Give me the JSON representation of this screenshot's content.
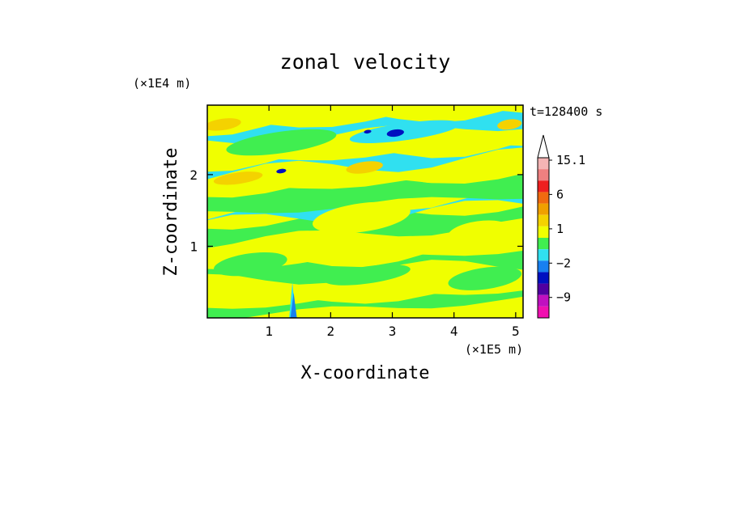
{
  "chart_data": {
    "type": "heatmap",
    "title": "zonal velocity",
    "xlabel": "X-coordinate",
    "ylabel": "Z-coordinate",
    "x_unit": "(×1E5 m)",
    "y_unit": "(×1E4 m)",
    "time_label": "t=128400 s",
    "xlim": [
      0,
      5.12
    ],
    "ylim": [
      0,
      2.97
    ],
    "x_ticks": [
      1,
      2,
      3,
      4,
      5
    ],
    "y_ticks": [
      1,
      2
    ],
    "colorbar": {
      "labels": [
        "15.1",
        "6",
        "1",
        "−2",
        "−9"
      ],
      "label_values": [
        15.1,
        6,
        1,
        -2,
        -9
      ],
      "levels": [
        {
          "value": 15.1,
          "color": "#f4b4b4"
        },
        {
          "value": 12,
          "color": "#ee8080"
        },
        {
          "value": 9,
          "color": "#ee2020"
        },
        {
          "value": 6,
          "color": "#f06a10"
        },
        {
          "value": 4,
          "color": "#f0a000"
        },
        {
          "value": 2,
          "color": "#f4d200"
        },
        {
          "value": 1,
          "color": "#f0ff00"
        },
        {
          "value": 0,
          "color": "#40ee50"
        },
        {
          "value": -1,
          "color": "#30e0f0"
        },
        {
          "value": -2,
          "color": "#1880f0"
        },
        {
          "value": -4,
          "color": "#0010c0"
        },
        {
          "value": -6,
          "color": "#5000a0"
        },
        {
          "value": -9,
          "color": "#c010c0"
        },
        {
          "value": -12,
          "color": "#f010b0"
        }
      ]
    },
    "bands": [
      {
        "z": [
          0.0,
          0.15
        ],
        "value": 0
      },
      {
        "z": [
          0.15,
          0.5
        ],
        "value": 1
      },
      {
        "z": [
          0.5,
          0.7
        ],
        "value": 0
      },
      {
        "z": [
          0.7,
          1.05
        ],
        "value": 1
      },
      {
        "z": [
          1.05,
          1.3
        ],
        "value": 0
      },
      {
        "z": [
          1.3,
          1.45
        ],
        "value": -1
      },
      {
        "z": [
          1.45,
          1.75
        ],
        "value": 0
      },
      {
        "z": [
          1.75,
          2.0
        ],
        "value": 1
      },
      {
        "z": [
          2.0,
          2.15
        ],
        "value": -1
      },
      {
        "z": [
          2.15,
          2.45
        ],
        "value": 1
      },
      {
        "z": [
          2.45,
          2.65
        ],
        "value": -1
      },
      {
        "z": [
          2.65,
          2.97
        ],
        "value": 1
      }
    ],
    "features": [
      {
        "x": 1.2,
        "z": 2.45,
        "rx": 0.9,
        "rz": 0.15,
        "value": 0
      },
      {
        "x": 3.2,
        "z": 2.6,
        "rx": 0.9,
        "rz": 0.12,
        "value": -1
      },
      {
        "x": 3.05,
        "z": 2.58,
        "rx": 0.14,
        "rz": 0.05,
        "value": -4
      },
      {
        "x": 2.6,
        "z": 2.6,
        "rx": 0.06,
        "rz": 0.025,
        "value": -4
      },
      {
        "x": 1.2,
        "z": 2.05,
        "rx": 0.08,
        "rz": 0.03,
        "value": -4
      },
      {
        "x": 0.25,
        "z": 2.7,
        "rx": 0.3,
        "rz": 0.08,
        "value": 2
      },
      {
        "x": 4.9,
        "z": 2.7,
        "rx": 0.2,
        "rz": 0.07,
        "value": 2
      },
      {
        "x": 2.55,
        "z": 2.1,
        "rx": 0.3,
        "rz": 0.08,
        "value": 2
      },
      {
        "x": 0.5,
        "z": 1.95,
        "rx": 0.4,
        "rz": 0.08,
        "value": 2
      },
      {
        "x": 3.9,
        "z": 2.0,
        "rx": 0.5,
        "rz": 0.1,
        "value": 1
      },
      {
        "x": 2.5,
        "z": 1.4,
        "rx": 0.8,
        "rz": 0.2,
        "value": 1
      },
      {
        "x": 4.4,
        "z": 1.2,
        "rx": 0.5,
        "rz": 0.15,
        "value": 1
      },
      {
        "x": 0.7,
        "z": 0.75,
        "rx": 0.6,
        "rz": 0.15,
        "value": 0
      },
      {
        "x": 2.6,
        "z": 0.6,
        "rx": 0.7,
        "rz": 0.12,
        "value": 0
      },
      {
        "x": 4.5,
        "z": 0.55,
        "rx": 0.6,
        "rz": 0.15,
        "value": 0
      },
      {
        "x": 0.6,
        "z": 0.3,
        "rx": 0.5,
        "rz": 0.1,
        "value": 1
      }
    ],
    "spikes": [
      {
        "x": 1.38,
        "z_top": 0.5,
        "value": -1
      },
      {
        "x": 1.4,
        "z_top": 0.35,
        "value": -2
      }
    ]
  }
}
